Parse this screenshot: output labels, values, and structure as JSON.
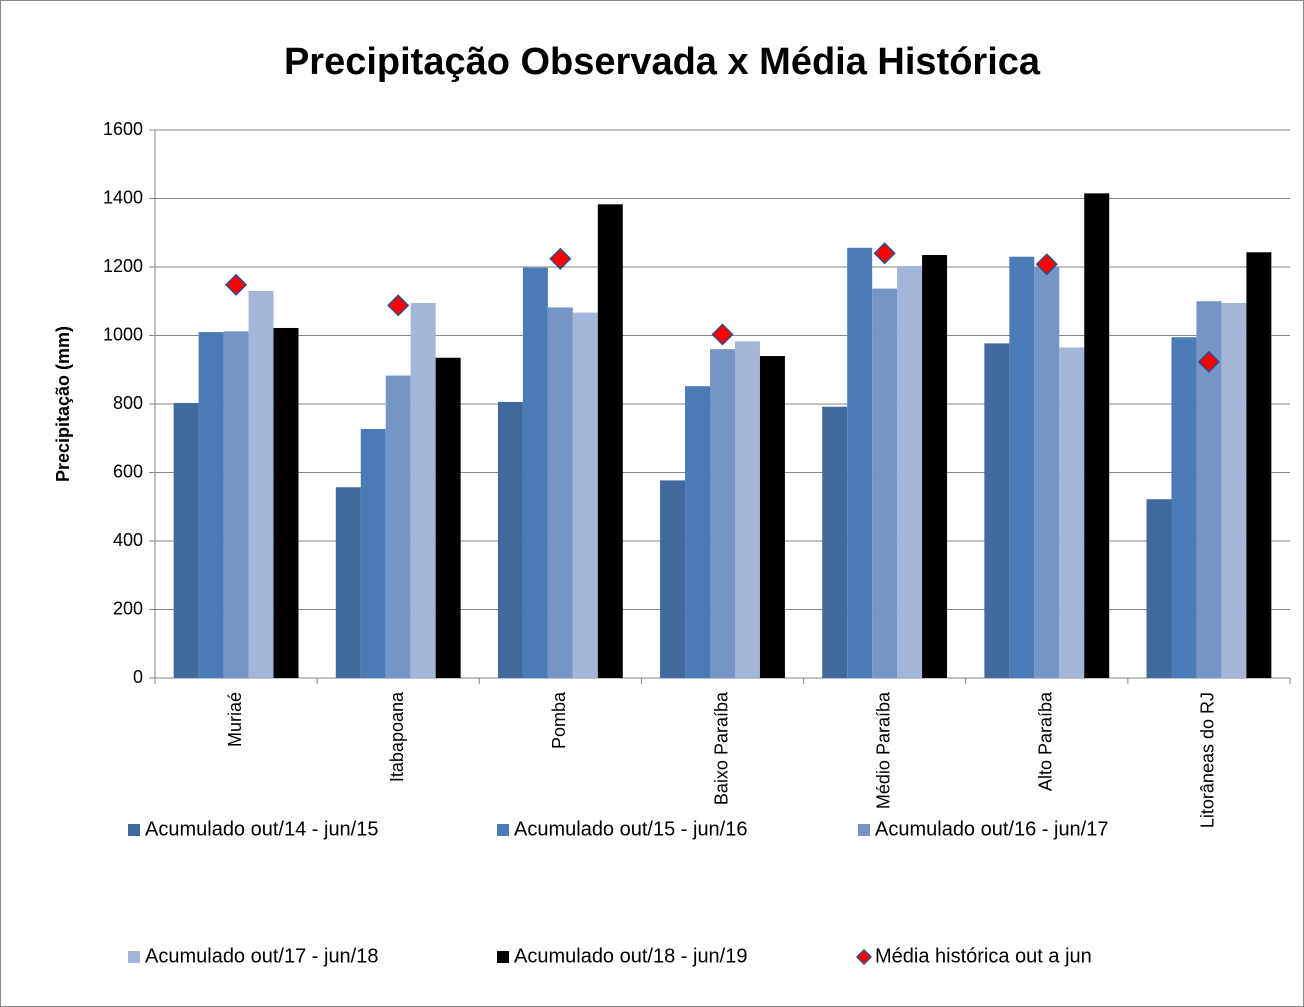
{
  "chart_data": {
    "type": "bar",
    "title": "Precipitação Observada x Média Histórica",
    "y_label": "Precipitação (mm)",
    "categories": [
      "Muriaé",
      "Itabapoana",
      "Pomba",
      "Baixo Paraíba",
      "Médio Paraíba",
      "Alto Paraíba",
      "Litorâneas do RJ"
    ],
    "series": [
      {
        "name": "Acumulado out/14 - jun/15",
        "color": "#41699c",
        "type": "bar",
        "values": [
          803,
          557,
          806,
          577,
          792,
          977,
          522
        ]
      },
      {
        "name": "Acumulado out/15 - jun/16",
        "color": "#4a7bb7",
        "type": "bar",
        "values": [
          1010,
          727,
          1198,
          852,
          1256,
          1230,
          995
        ]
      },
      {
        "name": "Acumulado out/16 - jun/17",
        "color": "#7595c7",
        "type": "bar",
        "values": [
          1012,
          883,
          1082,
          960,
          1137,
          1200,
          1100
        ]
      },
      {
        "name": "Acumulado out/17 - jun/18",
        "color": "#a3b5d8",
        "type": "bar",
        "values": [
          1130,
          1095,
          1067,
          983,
          1203,
          965,
          1095
        ]
      },
      {
        "name": "Acumulado out/18 - jun/19",
        "color": "#000000",
        "type": "bar",
        "values": [
          1022,
          935,
          1383,
          940,
          1235,
          1415,
          1243
        ]
      },
      {
        "name": "Média histórica out a jun",
        "color": "#ff0000",
        "type": "marker",
        "values": [
          1148,
          1088,
          1224,
          1003,
          1240,
          1208,
          923
        ]
      }
    ],
    "ylim": [
      0,
      1600
    ],
    "yticks": [
      0,
      200,
      400,
      600,
      800,
      1000,
      1200,
      1400,
      1600
    ],
    "grid": true,
    "legend": "bottom"
  }
}
